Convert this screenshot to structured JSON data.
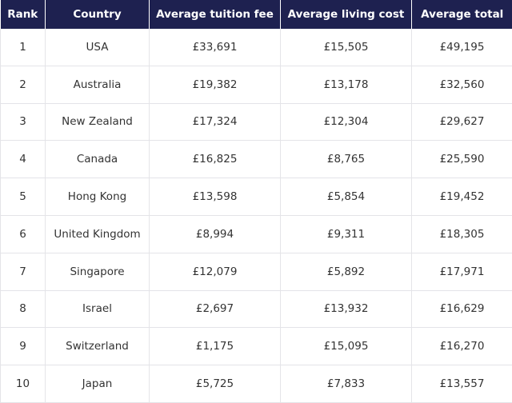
{
  "chart_data": {
    "type": "table",
    "columns": [
      "Rank",
      "Country",
      "Average tuition fee",
      "Average living cost",
      "Average total"
    ],
    "rows": [
      [
        "1",
        "USA",
        "£33,691",
        "£15,505",
        "£49,195"
      ],
      [
        "2",
        "Australia",
        "£19,382",
        "£13,178",
        "£32,560"
      ],
      [
        "3",
        "New Zealand",
        "£17,324",
        "£12,304",
        "£29,627"
      ],
      [
        "4",
        "Canada",
        "£16,825",
        "£8,765",
        "£25,590"
      ],
      [
        "5",
        "Hong Kong",
        "£13,598",
        "£5,854",
        "£19,452"
      ],
      [
        "6",
        "United Kingdom",
        "£8,994",
        "£9,311",
        "£18,305"
      ],
      [
        "7",
        "Singapore",
        "£12,079",
        "£5,892",
        "£17,971"
      ],
      [
        "8",
        "Israel",
        "£2,697",
        "£13,932",
        "£16,629"
      ],
      [
        "9",
        "Switzerland",
        "£1,175",
        "£15,095",
        "£16,270"
      ],
      [
        "10",
        "Japan",
        "£5,725",
        "£7,833",
        "£13,557"
      ]
    ]
  },
  "colors": {
    "header_bg": "#1e2150",
    "header_text": "#ffffff",
    "body_text": "#333333",
    "grid": "#e4e4e8"
  }
}
